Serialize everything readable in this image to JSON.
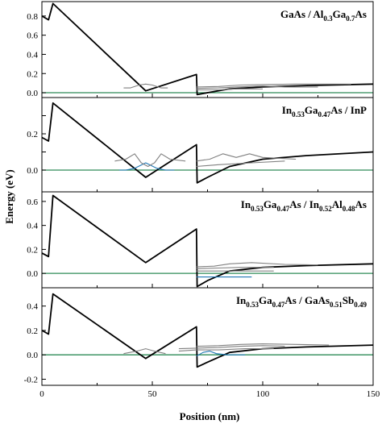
{
  "figure": {
    "ylabel": "Energy (eV)",
    "xlabel": "Position (nm)"
  },
  "chart_data": [
    {
      "type": "line",
      "title_parts": [
        {
          "t": "GaAs / Al"
        },
        {
          "t": "0.3",
          "sub": true
        },
        {
          "t": "Ga"
        },
        {
          "t": "0.7",
          "sub": true
        },
        {
          "t": "As"
        }
      ],
      "xlim": [
        0,
        150
      ],
      "ylim": [
        -0.05,
        0.95
      ],
      "yticks": [
        0.0,
        0.2,
        0.4,
        0.6,
        0.8
      ],
      "ytick_labels": [
        "0.0",
        "0.2",
        "0.4",
        "0.6",
        "0.8"
      ],
      "show_x_tick_labels": false,
      "series": [
        {
          "role": "fermi-level",
          "color": "#2e8b57",
          "points": [
            [
              0,
              0.0
            ],
            [
              150,
              0.0
            ]
          ]
        },
        {
          "role": "conduction-band",
          "color": "#000000",
          "points": [
            [
              0,
              0.8
            ],
            [
              3,
              0.76
            ],
            [
              5,
              0.93
            ],
            [
              47,
              0.02
            ],
            [
              70,
              0.19
            ],
            [
              70.3,
              -0.02
            ],
            [
              75,
              0.0
            ],
            [
              85,
              0.04
            ],
            [
              100,
              0.06
            ],
            [
              120,
              0.075
            ],
            [
              150,
              0.09
            ]
          ]
        },
        {
          "role": "wavefunction",
          "color": "#808080",
          "points": [
            [
              37,
              0.05
            ],
            [
              40,
              0.05
            ],
            [
              44,
              0.08
            ],
            [
              47,
              0.09
            ],
            [
              50,
              0.08
            ],
            [
              54,
              0.05
            ],
            [
              57,
              0.05
            ]
          ]
        },
        {
          "role": "wavefunction",
          "color": "#808080",
          "points": [
            [
              70,
              0.03
            ],
            [
              80,
              0.03
            ],
            [
              88,
              0.04
            ],
            [
              100,
              0.04
            ]
          ]
        },
        {
          "role": "wavefunction",
          "color": "#808080",
          "points": [
            [
              70,
              0.045
            ],
            [
              80,
              0.05
            ],
            [
              88,
              0.06
            ],
            [
              100,
              0.07
            ],
            [
              110,
              0.06
            ],
            [
              125,
              0.06
            ]
          ]
        },
        {
          "role": "wavefunction",
          "color": "#808080",
          "points": [
            [
              70,
              0.06
            ],
            [
              80,
              0.065
            ],
            [
              90,
              0.08
            ],
            [
              100,
              0.085
            ],
            [
              115,
              0.09
            ],
            [
              140,
              0.09
            ]
          ]
        }
      ]
    },
    {
      "type": "line",
      "title_parts": [
        {
          "t": "In"
        },
        {
          "t": "0.53",
          "sub": true
        },
        {
          "t": "Ga"
        },
        {
          "t": "0.47",
          "sub": true
        },
        {
          "t": "As / InP"
        }
      ],
      "xlim": [
        0,
        150
      ],
      "ylim": [
        -0.12,
        0.4
      ],
      "yticks": [
        0.0,
        0.1,
        0.2,
        0.3
      ],
      "ytick_labels": [
        "0.0",
        "",
        "0.2",
        ""
      ],
      "show_x_tick_labels": false,
      "series": [
        {
          "role": "fermi-level",
          "color": "#2e8b57",
          "points": [
            [
              0,
              0.0
            ],
            [
              150,
              0.0
            ]
          ]
        },
        {
          "role": "conduction-band",
          "color": "#000000",
          "points": [
            [
              0,
              0.18
            ],
            [
              3,
              0.16
            ],
            [
              5,
              0.37
            ],
            [
              47,
              -0.04
            ],
            [
              70,
              0.14
            ],
            [
              70.3,
              -0.07
            ],
            [
              75,
              -0.04
            ],
            [
              85,
              0.02
            ],
            [
              100,
              0.06
            ],
            [
              120,
              0.08
            ],
            [
              150,
              0.1
            ]
          ]
        },
        {
          "role": "wavefunction",
          "color": "#1f77b4",
          "points": [
            [
              35,
              0.0
            ],
            [
              38,
              0.0
            ],
            [
              42,
              0.01
            ],
            [
              47,
              0.04
            ],
            [
              52,
              0.01
            ],
            [
              56,
              0.0
            ],
            [
              60,
              0.0
            ]
          ]
        },
        {
          "role": "wavefunction",
          "color": "#808080",
          "points": [
            [
              33,
              0.05
            ],
            [
              38,
              0.06
            ],
            [
              42,
              0.09
            ],
            [
              45,
              0.04
            ],
            [
              48,
              0.02
            ],
            [
              51,
              0.04
            ],
            [
              54,
              0.09
            ],
            [
              58,
              0.06
            ],
            [
              65,
              0.05
            ]
          ]
        },
        {
          "role": "wavefunction",
          "color": "#808080",
          "points": [
            [
              70,
              0.02
            ],
            [
              80,
              0.03
            ],
            [
              95,
              0.04
            ],
            [
              110,
              0.05
            ]
          ]
        },
        {
          "role": "wavefunction",
          "color": "#808080",
          "points": [
            [
              70,
              0.05
            ],
            [
              76,
              0.06
            ],
            [
              82,
              0.09
            ],
            [
              88,
              0.07
            ],
            [
              94,
              0.09
            ],
            [
              100,
              0.07
            ],
            [
              115,
              0.06
            ]
          ]
        }
      ]
    },
    {
      "type": "line",
      "title_parts": [
        {
          "t": "In"
        },
        {
          "t": "0.53",
          "sub": true
        },
        {
          "t": "Ga"
        },
        {
          "t": "0.47",
          "sub": true
        },
        {
          "t": "As / In"
        },
        {
          "t": "0.52",
          "sub": true
        },
        {
          "t": "Al"
        },
        {
          "t": "0.48",
          "sub": true
        },
        {
          "t": "As"
        }
      ],
      "xlim": [
        0,
        150
      ],
      "ylim": [
        -0.12,
        0.68
      ],
      "yticks": [
        0.0,
        0.2,
        0.4,
        0.6
      ],
      "ytick_labels": [
        "0.0",
        "0.2",
        "0.4",
        "0.6"
      ],
      "show_x_tick_labels": false,
      "series": [
        {
          "role": "fermi-level",
          "color": "#2e8b57",
          "points": [
            [
              0,
              0.0
            ],
            [
              150,
              0.0
            ]
          ]
        },
        {
          "role": "conduction-band",
          "color": "#000000",
          "points": [
            [
              0,
              0.17
            ],
            [
              3,
              0.14
            ],
            [
              5,
              0.65
            ],
            [
              47,
              0.09
            ],
            [
              70,
              0.37
            ],
            [
              70.3,
              -0.11
            ],
            [
              75,
              -0.06
            ],
            [
              85,
              0.02
            ],
            [
              100,
              0.05
            ],
            [
              120,
              0.065
            ],
            [
              150,
              0.08
            ]
          ]
        },
        {
          "role": "wavefunction",
          "color": "#1f77b4",
          "points": [
            [
              70,
              -0.03
            ],
            [
              80,
              -0.03
            ],
            [
              88,
              -0.03
            ],
            [
              95,
              -0.03
            ]
          ]
        },
        {
          "role": "wavefunction",
          "color": "#808080",
          "points": [
            [
              70,
              0.02
            ],
            [
              80,
              0.02
            ],
            [
              95,
              0.02
            ],
            [
              105,
              0.02
            ]
          ]
        },
        {
          "role": "wavefunction",
          "color": "#808080",
          "points": [
            [
              70,
              0.04
            ],
            [
              80,
              0.045
            ],
            [
              90,
              0.05
            ],
            [
              105,
              0.05
            ]
          ]
        },
        {
          "role": "wavefunction",
          "color": "#808080",
          "points": [
            [
              70,
              0.055
            ],
            [
              78,
              0.06
            ],
            [
              85,
              0.08
            ],
            [
              95,
              0.09
            ],
            [
              110,
              0.075
            ],
            [
              125,
              0.07
            ]
          ]
        }
      ]
    },
    {
      "type": "line",
      "title_parts": [
        {
          "t": "In"
        },
        {
          "t": "0.53",
          "sub": true
        },
        {
          "t": "Ga"
        },
        {
          "t": "0.47",
          "sub": true
        },
        {
          "t": "As / GaAs"
        },
        {
          "t": "0.51",
          "sub": true
        },
        {
          "t": "Sb"
        },
        {
          "t": "0.49",
          "sub": true
        }
      ],
      "xlim": [
        0,
        150
      ],
      "ylim": [
        -0.25,
        0.55
      ],
      "yticks": [
        -0.2,
        0.0,
        0.2,
        0.4
      ],
      "ytick_labels": [
        "-0.2",
        "0.0",
        "0.2",
        "0.4"
      ],
      "show_x_tick_labels": true,
      "xticks": [
        0,
        50,
        100,
        150
      ],
      "xtick_labels": [
        "0",
        "50",
        "100",
        "150"
      ],
      "series": [
        {
          "role": "fermi-level",
          "color": "#2e8b57",
          "points": [
            [
              0,
              0.0
            ],
            [
              150,
              0.0
            ]
          ]
        },
        {
          "role": "conduction-band",
          "color": "#000000",
          "points": [
            [
              0,
              0.2
            ],
            [
              3,
              0.17
            ],
            [
              5,
              0.5
            ],
            [
              47,
              -0.03
            ],
            [
              70,
              0.23
            ],
            [
              70.3,
              -0.1
            ],
            [
              75,
              -0.06
            ],
            [
              85,
              0.02
            ],
            [
              100,
              0.05
            ],
            [
              120,
              0.065
            ],
            [
              150,
              0.08
            ]
          ]
        },
        {
          "role": "wavefunction",
          "color": "#1f77b4",
          "points": [
            [
              70,
              -0.01
            ],
            [
              73,
              0.02
            ],
            [
              76,
              0.03
            ],
            [
              79,
              0.01
            ],
            [
              84,
              0.0
            ],
            [
              92,
              0.0
            ]
          ]
        },
        {
          "role": "wavefunction",
          "color": "#808080",
          "points": [
            [
              37,
              0.01
            ],
            [
              43,
              0.03
            ],
            [
              47,
              0.05
            ],
            [
              51,
              0.03
            ],
            [
              56,
              0.01
            ]
          ]
        },
        {
          "role": "wavefunction",
          "color": "#808080",
          "points": [
            [
              62,
              0.03
            ],
            [
              70,
              0.04
            ],
            [
              80,
              0.04
            ],
            [
              92,
              0.05
            ],
            [
              105,
              0.05
            ]
          ]
        },
        {
          "role": "wavefunction",
          "color": "#808080",
          "points": [
            [
              62,
              0.05
            ],
            [
              70,
              0.055
            ],
            [
              80,
              0.06
            ],
            [
              90,
              0.07
            ],
            [
              100,
              0.075
            ],
            [
              110,
              0.07
            ]
          ]
        },
        {
          "role": "wavefunction",
          "color": "#808080",
          "points": [
            [
              70,
              0.07
            ],
            [
              80,
              0.075
            ],
            [
              90,
              0.085
            ],
            [
              100,
              0.09
            ],
            [
              115,
              0.085
            ],
            [
              130,
              0.08
            ]
          ]
        }
      ]
    }
  ]
}
